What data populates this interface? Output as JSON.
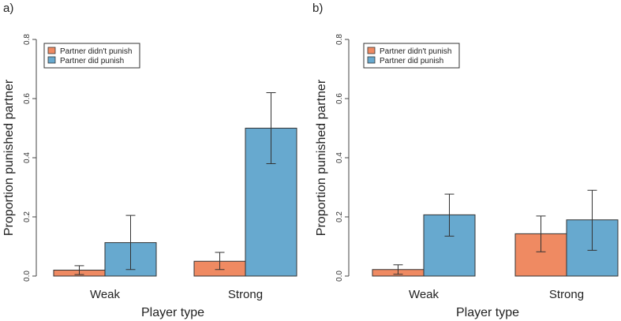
{
  "chart_data": [
    {
      "type": "bar",
      "panel_label": "a)",
      "categories": [
        "Weak",
        "Strong"
      ],
      "series": [
        {
          "name": "Partner didn't punish",
          "color": "#ef8a62",
          "values": [
            0.02,
            0.05
          ],
          "err_low": [
            0.005,
            0.022
          ],
          "err_high": [
            0.035,
            0.08
          ]
        },
        {
          "name": "Partner did punish",
          "color": "#67a9cf",
          "values": [
            0.113,
            0.5
          ],
          "err_low": [
            0.022,
            0.38
          ],
          "err_high": [
            0.205,
            0.62
          ]
        }
      ],
      "xlabel": "Player type",
      "ylabel": "Proportion punished partner",
      "ylim": [
        0,
        0.8
      ],
      "yticks": [
        "0.0",
        "0.2",
        "0.4",
        "0.6",
        "0.8"
      ],
      "legend_position": "top-left"
    },
    {
      "type": "bar",
      "panel_label": "b)",
      "categories": [
        "Weak",
        "Strong"
      ],
      "series": [
        {
          "name": "Partner didn't punish",
          "color": "#ef8a62",
          "values": [
            0.022,
            0.143
          ],
          "err_low": [
            0.006,
            0.082
          ],
          "err_high": [
            0.038,
            0.203
          ]
        },
        {
          "name": "Partner did punish",
          "color": "#67a9cf",
          "values": [
            0.207,
            0.19
          ],
          "err_low": [
            0.135,
            0.087
          ],
          "err_high": [
            0.277,
            0.29
          ]
        }
      ],
      "xlabel": "Player type",
      "ylabel": "Proportion punished partner",
      "ylim": [
        0,
        0.8
      ],
      "yticks": [
        "0.0",
        "0.2",
        "0.4",
        "0.6",
        "0.8"
      ],
      "legend_position": "top-left"
    }
  ]
}
